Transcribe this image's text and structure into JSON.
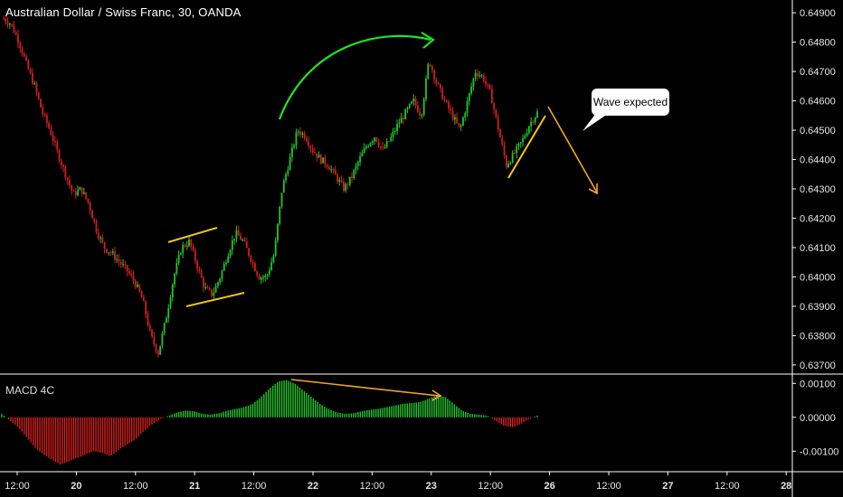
{
  "title": "Australian Dollar / Swiss Franc, 30, OANDA",
  "indicator_label": "MACD 4C",
  "callout_text": "Wave expected",
  "colors": {
    "up": "#22c52c",
    "down": "#d11f1f",
    "annotation_orange": "#f5a623",
    "annotation_yellow": "#f2c41a",
    "arrow_green": "#21e21f",
    "axis_line": "#ffffff",
    "axis_text": "#e6e6e6"
  },
  "chart_data": {
    "type": "candlestick",
    "main_y_ticks": [
      "0.64900",
      "0.64800",
      "0.64700",
      "0.64600",
      "0.64500",
      "0.64400",
      "0.64300",
      "0.64200",
      "0.64100",
      "0.64000",
      "0.63900",
      "0.63800",
      "0.63700"
    ],
    "main_ylim": [
      0.63675,
      0.64925
    ],
    "macd_y_ticks": [
      "0.00100",
      "0.00000",
      "-0.00100"
    ],
    "macd_ylim": [
      -0.00155,
      0.00122
    ],
    "x_ticks": [
      "12:00",
      "20",
      "12:00",
      "21",
      "12:00",
      "22",
      "12:00",
      "23",
      "12:00",
      "26",
      "12:00",
      "27",
      "12:00",
      "28"
    ],
    "price_path_close": [
      0.6488,
      0.6486,
      0.648,
      0.6472,
      0.6465,
      0.6456,
      0.645,
      0.6442,
      0.6435,
      0.6428,
      0.643,
      0.6425,
      0.6416,
      0.641,
      0.6408,
      0.6405,
      0.6402,
      0.6398,
      0.6392,
      0.638,
      0.6374,
      0.6386,
      0.64,
      0.641,
      0.6412,
      0.6404,
      0.6396,
      0.6394,
      0.64,
      0.6408,
      0.6415,
      0.6412,
      0.6406,
      0.64,
      0.64,
      0.6408,
      0.643,
      0.644,
      0.645,
      0.6448,
      0.6443,
      0.644,
      0.6438,
      0.6434,
      0.643,
      0.6434,
      0.644,
      0.6445,
      0.6448,
      0.6443,
      0.6447,
      0.6452,
      0.6456,
      0.646,
      0.6455,
      0.6474,
      0.6466,
      0.646,
      0.6455,
      0.645,
      0.646,
      0.647,
      0.6468,
      0.6462,
      0.645,
      0.6438,
      0.6442,
      0.6446,
      0.6452,
      0.6456
    ],
    "macd_values": [
      0.0001,
      -0.0001,
      -0.0003,
      -0.0006,
      -0.0009,
      -0.0011,
      -0.00125,
      -0.0014,
      -0.0013,
      -0.0012,
      -0.0011,
      -0.001,
      -0.00105,
      -0.00115,
      -0.00095,
      -0.0008,
      -0.00065,
      -0.0004,
      -0.0002,
      -5e-05,
      5e-05,
      0.00015,
      0.0002,
      0.00018,
      0.0001,
      8e-05,
      0.00012,
      0.0002,
      0.00025,
      0.0003,
      0.0004,
      0.0006,
      0.00085,
      0.00105,
      0.0011,
      0.001,
      0.0008,
      0.0006,
      0.0004,
      0.00025,
      0.00015,
      0.0001,
      0.00012,
      0.00018,
      0.00022,
      0.00025,
      0.0003,
      0.00035,
      0.0004,
      0.00042,
      0.00045,
      0.00055,
      0.00065,
      0.0006,
      0.0004,
      0.0002,
      0.0001,
      8e-05,
      5e-05,
      -0.0001,
      -0.00025,
      -0.0003,
      -0.0002,
      -5e-05,
      5e-05
    ]
  }
}
